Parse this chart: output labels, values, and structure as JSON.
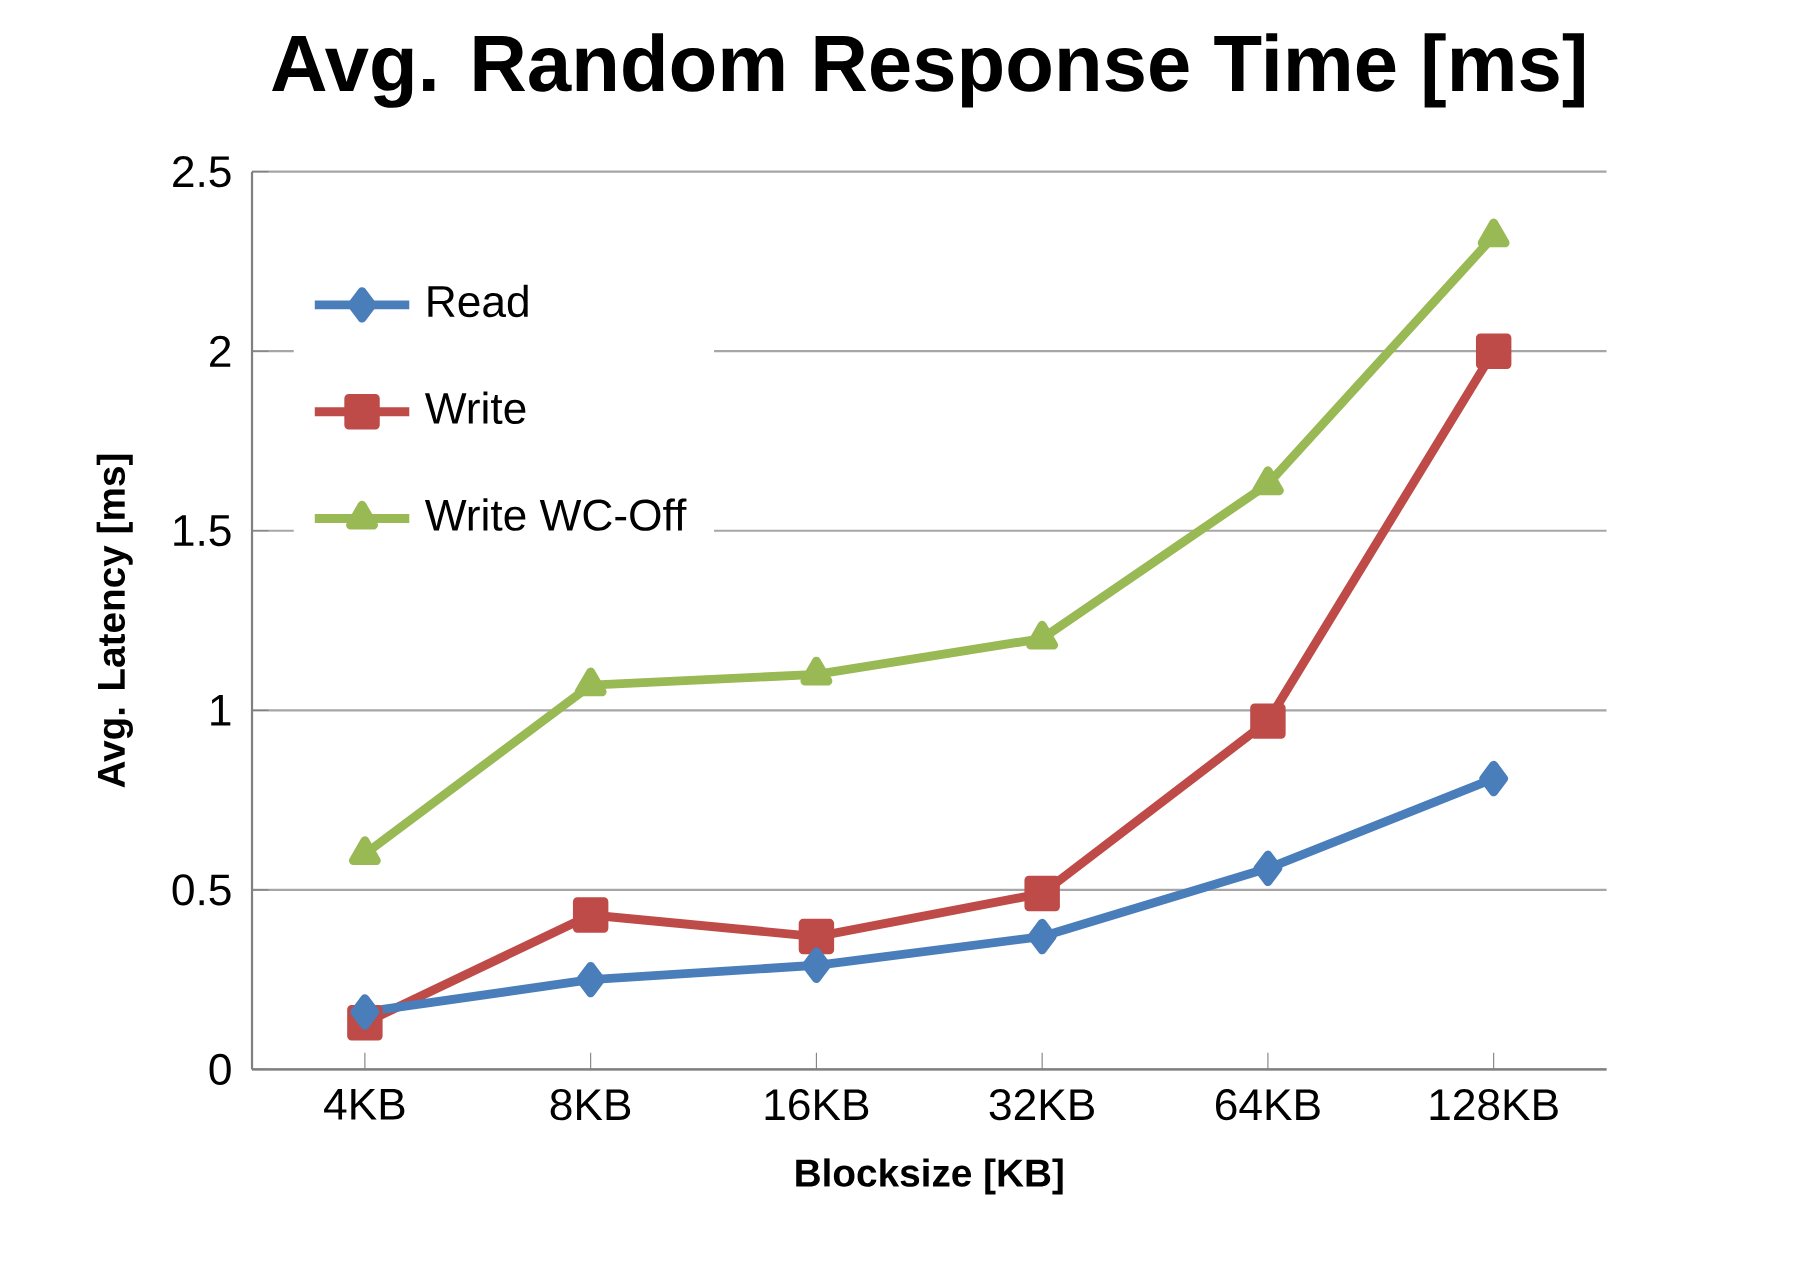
{
  "chart_data": {
    "type": "line",
    "title": "Avg. Random Response Time [ms]",
    "xlabel": "Blocksize [KB]",
    "ylabel": "Avg. Latency [ms]",
    "categories": [
      "4KB",
      "8KB",
      "16KB",
      "32KB",
      "64KB",
      "128KB"
    ],
    "series": [
      {
        "name": "Read",
        "color": "#4a7ebb",
        "marker": "diamond",
        "values": [
          0.16,
          0.25,
          0.29,
          0.37,
          0.56,
          0.81
        ]
      },
      {
        "name": "Write",
        "color": "#be4b48",
        "marker": "square",
        "values": [
          0.13,
          0.43,
          0.37,
          0.49,
          0.97,
          2.0
        ]
      },
      {
        "name": "Write WC-Off",
        "color": "#98b954",
        "marker": "triangle",
        "values": [
          0.6,
          1.07,
          1.1,
          1.2,
          1.63,
          2.32
        ]
      }
    ],
    "ylim": [
      0,
      2.5
    ],
    "yticks": [
      0,
      0.5,
      1,
      1.5,
      2,
      2.5
    ],
    "grid": "y",
    "legend": "top left",
    "line_style": "solid"
  }
}
